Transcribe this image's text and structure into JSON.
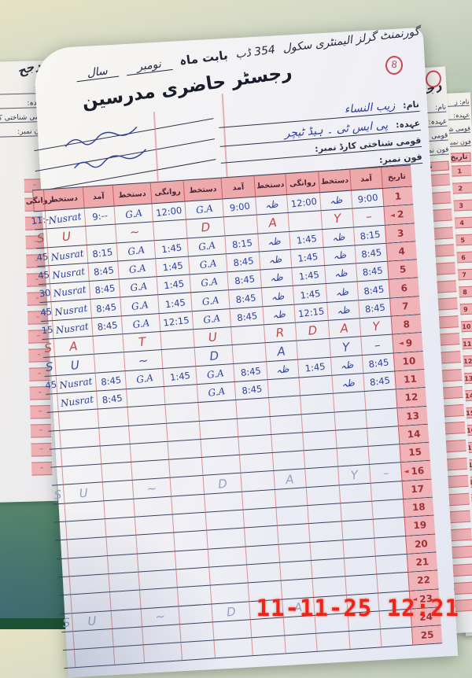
{
  "photo": {
    "timestamp": "11-11-25 12:21"
  },
  "register": {
    "page_number": "8",
    "title": "رجسٹر حاضری مدرسین",
    "school_name": "گورنمنٹ گرلز الیمنٹری سکول",
    "school_code": "354 ڈب",
    "month_label": "بابت ماہ",
    "month_value": "نومبر",
    "year_label": "سال",
    "fields": {
      "name_label": "نام:",
      "name_value": "زیب النساء",
      "designation_label": "عہدہ:",
      "designation_value": "پی ایس ٹی ۔ ہیڈ ٹیچر",
      "cnic_label": "قومی شناختی کارڈ نمبر:",
      "phone_label": "فون نمبر:"
    },
    "table": {
      "col_headers": [
        "روانگی",
        "دستخط",
        "آمد",
        "دستخط",
        "روانگی",
        "دستخط",
        "آمد",
        "دستخط",
        "روانگی",
        "دستخط",
        "آمد",
        "تاریخ"
      ],
      "rows": [
        {
          "date": "1",
          "pen": "blue",
          "cells": [
            "11:-",
            "Nusrat",
            "9:--",
            "G.A",
            "12:00",
            "G.A",
            "9:00",
            "ظہ",
            "12:00",
            "ظہ",
            "9:00"
          ]
        },
        {
          "date": "2",
          "arrow": true,
          "pen": "red",
          "letters": true,
          "cells": [
            "S",
            "U",
            "",
            "~",
            "",
            "D",
            "",
            "A",
            "",
            "Y",
            "–"
          ]
        },
        {
          "date": "3",
          "pen": "blue",
          "cells": [
            "45",
            "Nusrat",
            "8:15",
            "G.A",
            "1:45",
            "G.A",
            "8:15",
            "ظہ",
            "1:45",
            "ظہ",
            "8:15"
          ]
        },
        {
          "date": "4",
          "pen": "blue",
          "cells": [
            "45",
            "Nusrat",
            "8:45",
            "G.A",
            "1:45",
            "G.A",
            "8:45",
            "ظہ",
            "1:45",
            "ظہ",
            "8:45"
          ]
        },
        {
          "date": "5",
          "pen": "blue",
          "cells": [
            "30",
            "Nusrat",
            "8:45",
            "G.A",
            "1:45",
            "G.A",
            "8:45",
            "ظہ",
            "1:45",
            "ظہ",
            "8:45"
          ]
        },
        {
          "date": "6",
          "pen": "blue",
          "cells": [
            "45",
            "Nusrat",
            "8:45",
            "G.A",
            "1:45",
            "G.A",
            "8:45",
            "ظہ",
            "1:45",
            "ظہ",
            "8:45"
          ]
        },
        {
          "date": "7",
          "pen": "blue",
          "cells": [
            "15",
            "Nusrat",
            "8:45",
            "G.A",
            "12:15",
            "G.A",
            "8:45",
            "ظہ",
            "12:15",
            "ظہ",
            "8:45"
          ]
        },
        {
          "date": "8",
          "pen": "red",
          "letters": true,
          "cells": [
            "S",
            "A",
            "",
            "T",
            "",
            "U",
            "",
            "R",
            "D",
            "A",
            "Y"
          ]
        },
        {
          "date": "9",
          "arrow": true,
          "pen": "blue",
          "letters": true,
          "cells": [
            "S",
            "U",
            "",
            "~",
            "",
            "D",
            "",
            "A",
            "",
            "Y",
            "–"
          ]
        },
        {
          "date": "10",
          "pen": "blue",
          "cells": [
            "45",
            "Nusrat",
            "8:45",
            "G.A",
            "1:45",
            "G.A",
            "8:45",
            "ظہ",
            "1:45",
            "ظہ",
            "8:45"
          ]
        },
        {
          "date": "11",
          "pen": "blue",
          "cells": [
            "",
            "Nusrat",
            "8:45",
            "",
            "",
            "G.A",
            "8:45",
            "",
            "",
            "ظہ",
            "8:45"
          ]
        },
        {
          "date": "12",
          "cells": [
            "",
            "",
            "",
            "",
            "",
            "",
            "",
            "",
            "",
            "",
            ""
          ]
        },
        {
          "date": "13",
          "cells": [
            "",
            "",
            "",
            "",
            "",
            "",
            "",
            "",
            "",
            "",
            ""
          ]
        },
        {
          "date": "14",
          "cells": [
            "",
            "",
            "",
            "",
            "",
            "",
            "",
            "",
            "",
            "",
            ""
          ]
        },
        {
          "date": "15",
          "cells": [
            "",
            "",
            "",
            "",
            "",
            "",
            "",
            "",
            "",
            "",
            ""
          ]
        },
        {
          "date": "16",
          "arrow": true,
          "pen": "faint",
          "letters": true,
          "cells": [
            "S",
            "U",
            "",
            "~",
            "",
            "D",
            "",
            "A",
            "",
            "Y",
            "–"
          ]
        },
        {
          "date": "17",
          "cells": [
            "",
            "",
            "",
            "",
            "",
            "",
            "",
            "",
            "",
            "",
            ""
          ]
        },
        {
          "date": "18",
          "cells": [
            "",
            "",
            "",
            "",
            "",
            "",
            "",
            "",
            "",
            "",
            ""
          ]
        },
        {
          "date": "19",
          "cells": [
            "",
            "",
            "",
            "",
            "",
            "",
            "",
            "",
            "",
            "",
            ""
          ]
        },
        {
          "date": "20",
          "cells": [
            "",
            "",
            "",
            "",
            "",
            "",
            "",
            "",
            "",
            "",
            ""
          ]
        },
        {
          "date": "21",
          "cells": [
            "",
            "",
            "",
            "",
            "",
            "",
            "",
            "",
            "",
            "",
            ""
          ]
        },
        {
          "date": "22",
          "cells": [
            "",
            "",
            "",
            "",
            "",
            "",
            "",
            "",
            "",
            "",
            ""
          ]
        },
        {
          "date": "23",
          "arrow": true,
          "pen": "faint",
          "letters": true,
          "cells": [
            "S",
            "U",
            "",
            "~",
            "",
            "D",
            "",
            "A",
            "",
            "Y",
            "–"
          ]
        },
        {
          "date": "24",
          "cells": [
            "",
            "",
            "",
            "",
            "",
            "",
            "",
            "",
            "",
            "",
            ""
          ]
        },
        {
          "date": "25",
          "cells": [
            "",
            "",
            "",
            "",
            "",
            "",
            "",
            "",
            "",
            "",
            ""
          ]
        }
      ]
    }
  },
  "back_pages": {
    "right": {
      "title_fragment": "رجسٹرح",
      "name_label": "نام:",
      "name_fragment": "نام:  ز",
      "designation_label": "عہدہ:",
      "cnic_label": "قومی شناختی کار",
      "phone_label": "فون نمبر:",
      "date_header": "تاریخ",
      "dates": [
        "1",
        "2",
        "3",
        "4",
        "5",
        "6",
        "7",
        "8",
        "9",
        "10",
        "11",
        "12",
        "13",
        "14",
        "15",
        "16",
        "17",
        "18",
        "19",
        "20",
        "21",
        "22",
        "23",
        "24",
        "25"
      ]
    },
    "left": {
      "title_fragment": "رجح",
      "name_label": "نام:",
      "designation_label": "عہدہ:",
      "cnic_label": "قومی شناختی کار",
      "phone_label": "فون نمبر:",
      "date_header": "تاریخ"
    }
  }
}
